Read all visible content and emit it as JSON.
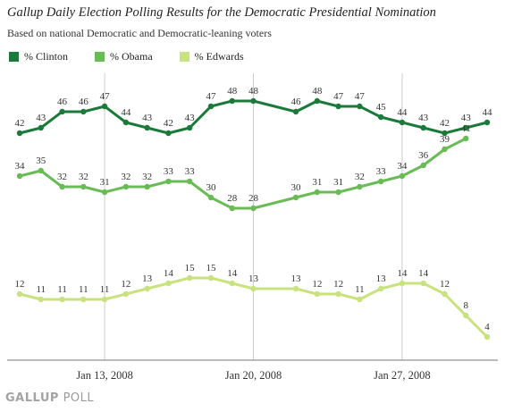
{
  "title": "Gallup Daily Election Polling Results for the Democratic Presidential Nomination",
  "subtitle": "Based on national Democratic and Democratic-leaning voters",
  "logo": {
    "bold": "GALLUP",
    "light": "POLL"
  },
  "colors": {
    "clinton": "#1b7a3a",
    "obama": "#69bb55",
    "edwards": "#c8e27d",
    "gridline": "#cccccc",
    "axis": "#777777"
  },
  "chart_data": {
    "type": "line",
    "title": "Gallup Daily Election Polling Results for the Democratic Presidential Nomination",
    "subtitle": "Based on national Democratic and Democratic-leaning voters",
    "xlabel": "",
    "ylabel": "",
    "x_ticks": [
      {
        "label": "Jan 13, 2008",
        "index": 4
      },
      {
        "label": "Jan 20, 2008",
        "index": 11
      },
      {
        "label": "Jan 27, 2008",
        "index": 18
      }
    ],
    "ylim": [
      0,
      52
    ],
    "grid": "vertical at date ticks",
    "legend": "top-left",
    "series": [
      {
        "name": "% Clinton",
        "color": "#1b7a3a",
        "values": [
          42,
          43,
          46,
          46,
          47,
          44,
          43,
          42,
          43,
          47,
          48,
          48,
          null,
          46,
          48,
          47,
          47,
          45,
          44,
          43,
          42,
          43,
          44
        ]
      },
      {
        "name": "% Obama",
        "color": "#69bb55",
        "values": [
          34,
          35,
          32,
          32,
          31,
          32,
          32,
          33,
          33,
          30,
          28,
          28,
          null,
          30,
          31,
          31,
          32,
          33,
          34,
          36,
          39,
          41,
          null
        ]
      },
      {
        "name": "% Edwards",
        "color": "#c8e27d",
        "values": [
          12,
          11,
          11,
          11,
          11,
          12,
          13,
          14,
          15,
          15,
          14,
          13,
          null,
          13,
          12,
          12,
          11,
          13,
          14,
          14,
          12,
          8,
          4
        ]
      }
    ]
  }
}
